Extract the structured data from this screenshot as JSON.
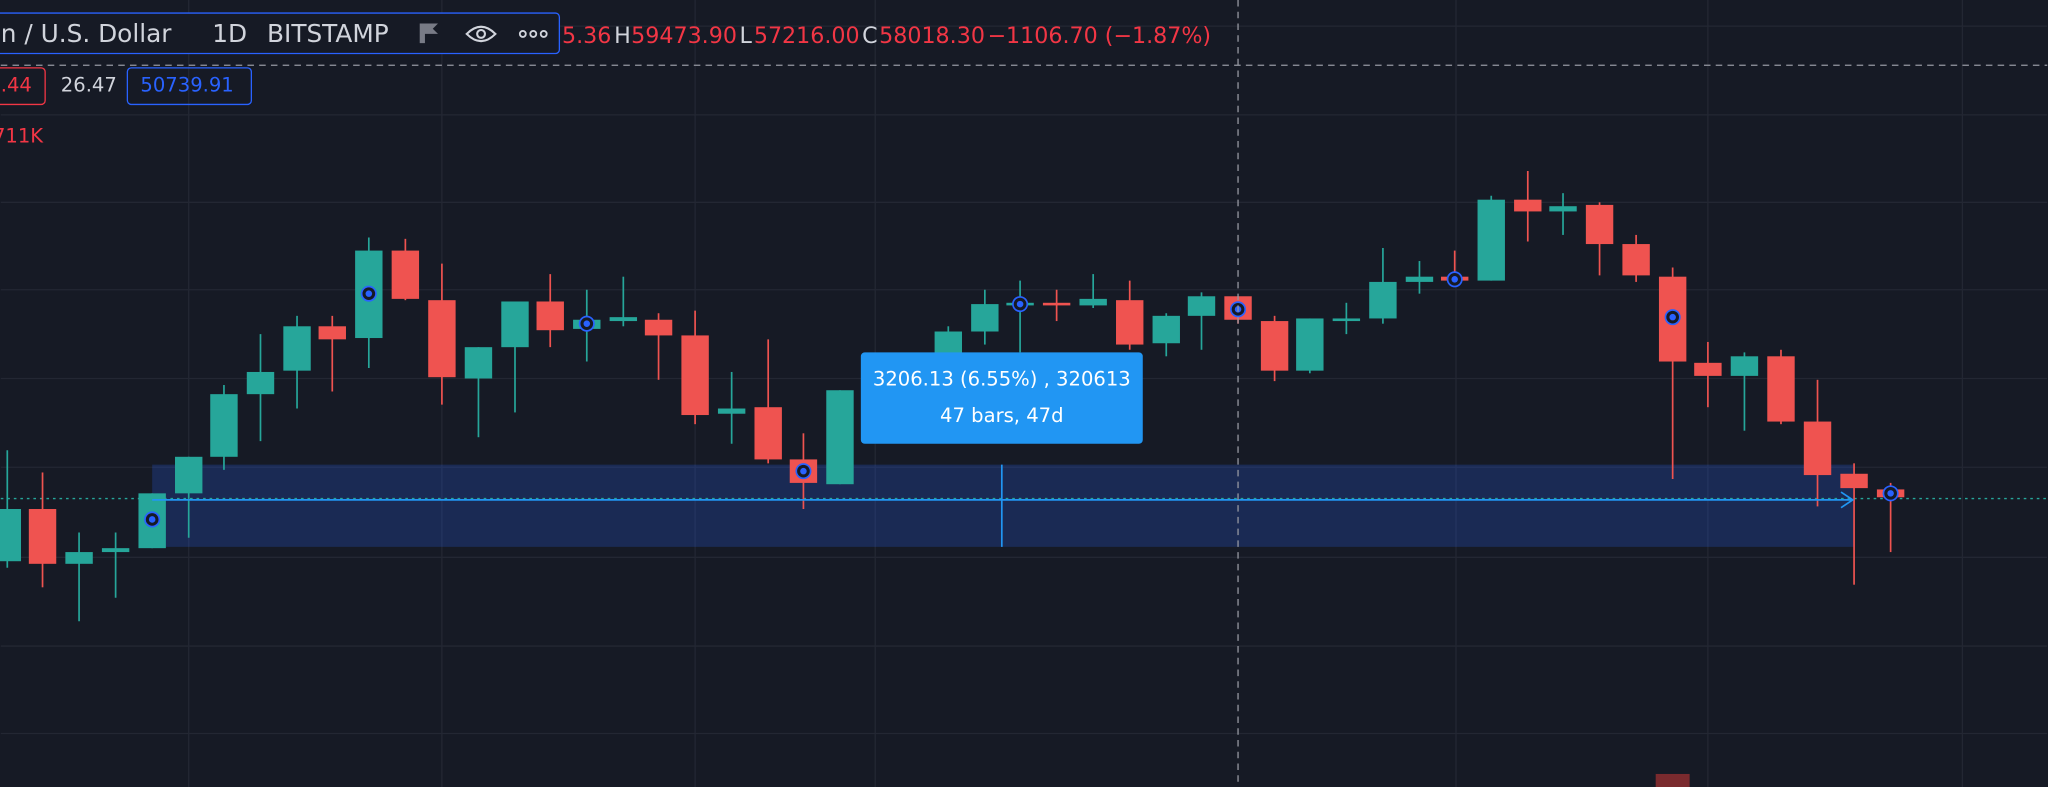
{
  "header": {
    "symbol": "n / U.S. Dollar",
    "interval": "1D",
    "exchange": "BITSTAMP",
    "open": "5.36",
    "high_label": "H",
    "high": "59473.90",
    "low_label": "L",
    "low": "57216.00",
    "close_label": "C",
    "close": "58018.30",
    "change": "−1106.70 (−1.87%)"
  },
  "indicators": {
    "first": ".44",
    "second": "26.47",
    "third": "50739.91"
  },
  "volume": "711K",
  "measure": {
    "label": "3206.13 (6.55%) , 320613",
    "bars": "47 bars, 47d"
  }
}
